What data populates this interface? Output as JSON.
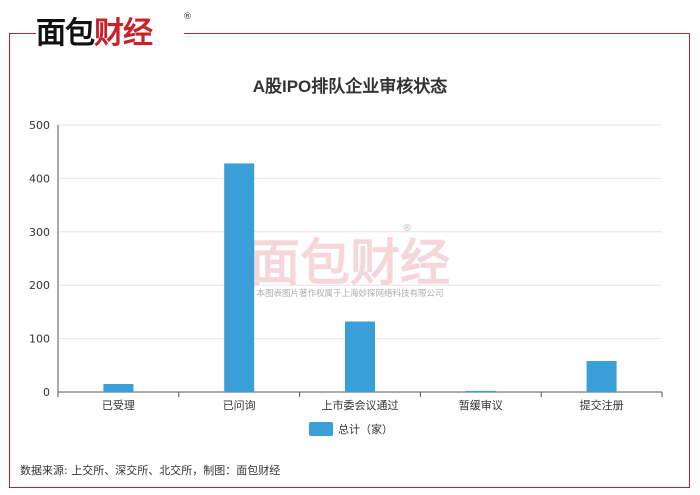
{
  "brand": {
    "logo_black": "面包",
    "logo_red": "财经",
    "logo_mark": "®"
  },
  "watermark": {
    "logo": "面包财经",
    "mark": "®",
    "text": "本图表图片著作权属于上海妙探网络科技有限公司"
  },
  "chart_data": {
    "type": "bar",
    "title": "A股IPO排队企业审核状态",
    "categories": [
      "已受理",
      "已问询",
      "上市委会议通过",
      "暂缓审议",
      "提交注册"
    ],
    "series": [
      {
        "name": "总计（家）",
        "values": [
          15,
          428,
          132,
          2,
          58
        ],
        "color": "#3a9fd8"
      }
    ],
    "ylim": [
      0,
      500
    ],
    "yticks": [
      0,
      100,
      200,
      300,
      400,
      500
    ],
    "grid": true,
    "legend": "bottom"
  },
  "footer": {
    "source": "数据来源: 上交所、深交所、北交所，制图：面包财经"
  }
}
